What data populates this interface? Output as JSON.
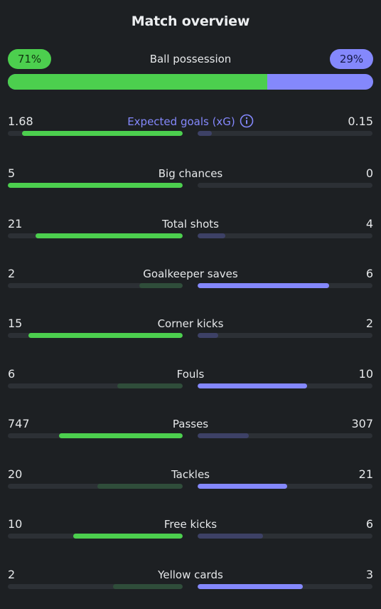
{
  "header": {
    "title": "Match overview"
  },
  "possession": {
    "label": "Ball possession",
    "home_label": "71%",
    "away_label": "29%",
    "home_percent": 71,
    "away_percent": 29
  },
  "colors": {
    "home_win": "#4ccf4e",
    "home_lose": "#2f4d3a",
    "away_win": "#8488fc",
    "away_lose": "#3d4166",
    "track": "#2c3035",
    "accent": "#8488fc"
  },
  "stats": [
    {
      "label": "Expected goals (xG)",
      "home": "1.68",
      "away": "0.15",
      "home_num": 1.68,
      "away_num": 0.15,
      "accent": true,
      "info_icon": "info-icon"
    },
    {
      "label": "Big chances",
      "home": "5",
      "away": "0",
      "home_num": 5,
      "away_num": 0
    },
    {
      "label": "Total shots",
      "home": "21",
      "away": "4",
      "home_num": 21,
      "away_num": 4
    },
    {
      "label": "Goalkeeper saves",
      "home": "2",
      "away": "6",
      "home_num": 2,
      "away_num": 6
    },
    {
      "label": "Corner kicks",
      "home": "15",
      "away": "2",
      "home_num": 15,
      "away_num": 2
    },
    {
      "label": "Fouls",
      "home": "6",
      "away": "10",
      "home_num": 6,
      "away_num": 10
    },
    {
      "label": "Passes",
      "home": "747",
      "away": "307",
      "home_num": 747,
      "away_num": 307
    },
    {
      "label": "Tackles",
      "home": "20",
      "away": "21",
      "home_num": 20,
      "away_num": 21
    },
    {
      "label": "Free kicks",
      "home": "10",
      "away": "6",
      "home_num": 10,
      "away_num": 6
    },
    {
      "label": "Yellow cards",
      "home": "2",
      "away": "3",
      "home_num": 2,
      "away_num": 3
    }
  ]
}
